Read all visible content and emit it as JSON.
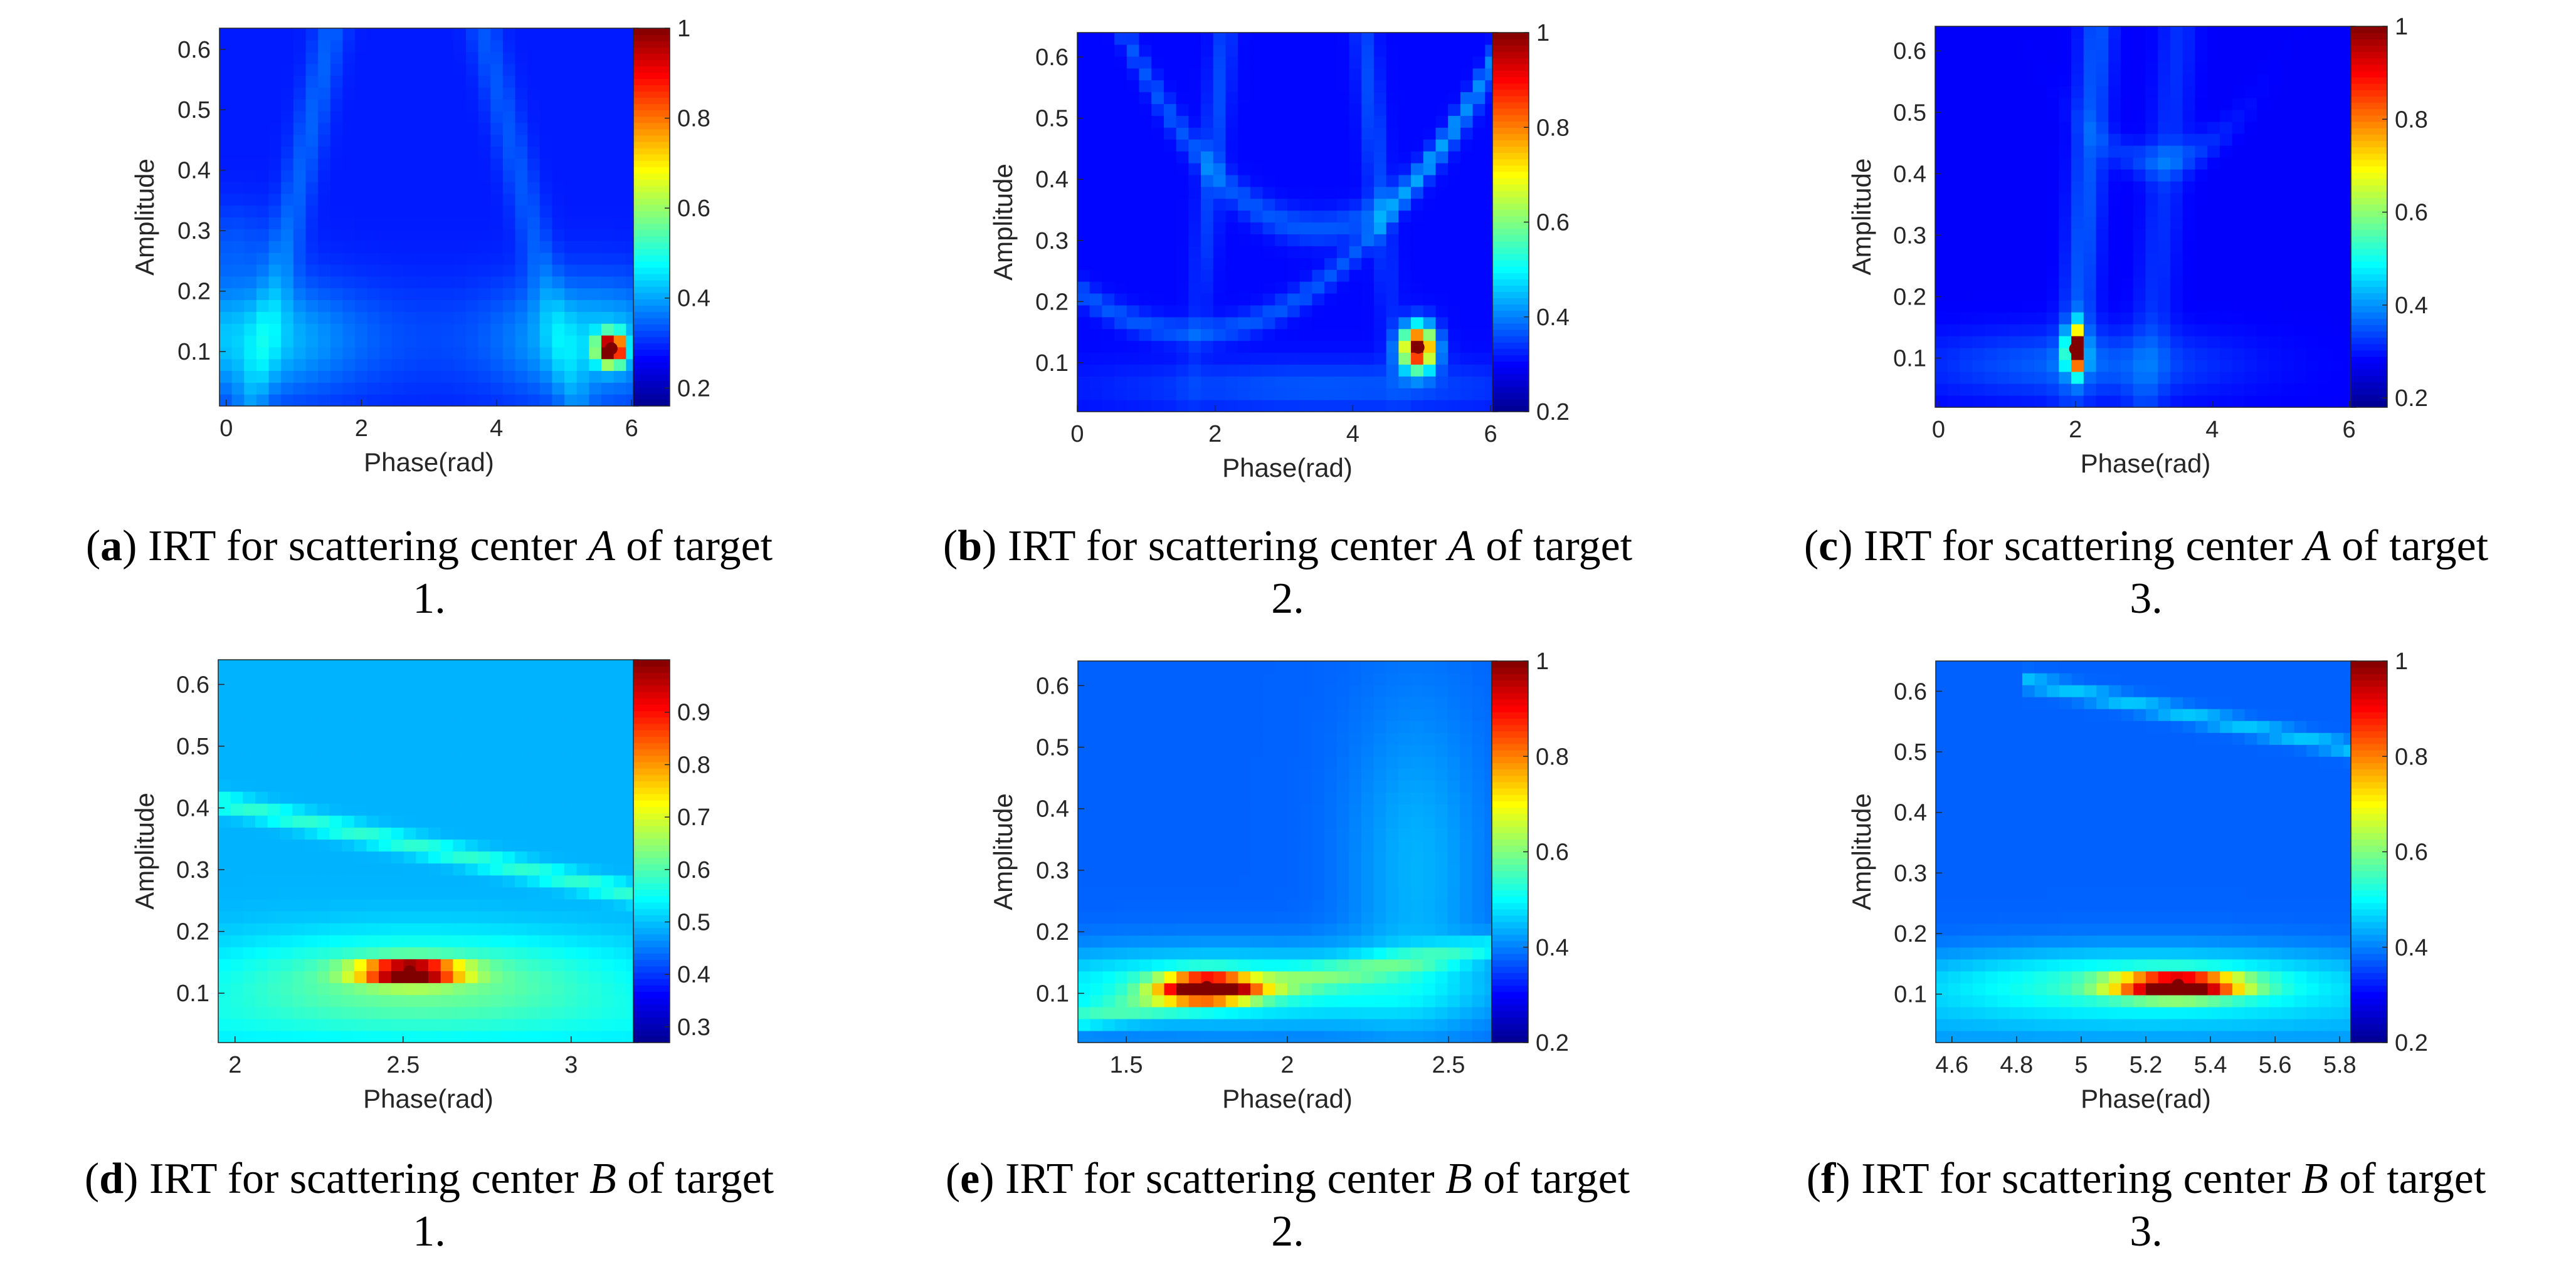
{
  "colorbar_palette": [
    "#00008f",
    "#0000ff",
    "#0080ff",
    "#00ffff",
    "#80ff80",
    "#ffff00",
    "#ff8000",
    "#ff0000",
    "#800000"
  ],
  "chart_data": [
    {
      "type": "heatmap",
      "id": "a",
      "xlabel": "Phase(rad)",
      "ylabel": "Amplitude",
      "xlim": [
        -0.1,
        6.1
      ],
      "ylim": [
        0.01,
        0.635
      ],
      "xticks": [
        0,
        2,
        4,
        6
      ],
      "xtick_labels": [
        "0",
        "2",
        "4",
        "6"
      ],
      "yticks": [
        0.1,
        0.2,
        0.3,
        0.4,
        0.5,
        0.6
      ],
      "ytick_labels": [
        "0.1",
        "0.2",
        "0.3",
        "0.4",
        "0.5",
        "0.6"
      ],
      "colorbar": {
        "range": [
          0.16,
          1
        ],
        "ticks": [
          0.2,
          0.4,
          0.6,
          0.8,
          1
        ],
        "tick_labels": [
          "0.2",
          "0.4",
          "0.6",
          "0.8",
          "1"
        ]
      },
      "peak": {
        "x": 5.7,
        "y": 0.105,
        "value": 1
      },
      "caption": {
        "letter": "a",
        "text_before": "IRT for scattering center",
        "center": "A",
        "text_after": "of target",
        "target": "1."
      }
    },
    {
      "type": "heatmap",
      "id": "b",
      "xlabel": "Phase(rad)",
      "ylabel": "Amplitude",
      "xlim": [
        0,
        6.1
      ],
      "ylim": [
        0.02,
        0.64
      ],
      "xticks": [
        0,
        2,
        4,
        6
      ],
      "xtick_labels": [
        "0",
        "2",
        "4",
        "6"
      ],
      "yticks": [
        0.1,
        0.2,
        0.3,
        0.4,
        0.5,
        0.6
      ],
      "ytick_labels": [
        "0.1",
        "0.2",
        "0.3",
        "0.4",
        "0.5",
        "0.6"
      ],
      "colorbar": {
        "range": [
          0.2,
          1
        ],
        "ticks": [
          0.2,
          0.4,
          0.6,
          0.8,
          1
        ],
        "tick_labels": [
          "0.2",
          "0.4",
          "0.6",
          "0.8",
          "1"
        ]
      },
      "peak": {
        "x": 4.95,
        "y": 0.125,
        "value": 1
      },
      "caption": {
        "letter": "b",
        "text_before": "IRT for scattering center",
        "center": "A",
        "text_after": "of target",
        "target": "2."
      }
    },
    {
      "type": "heatmap",
      "id": "c",
      "xlabel": "Phase(rad)",
      "ylabel": "Amplitude",
      "xlim": [
        -0.05,
        6.1
      ],
      "ylim": [
        0.02,
        0.64
      ],
      "xticks": [
        0,
        2,
        4,
        6
      ],
      "xtick_labels": [
        "0",
        "2",
        "4",
        "6"
      ],
      "yticks": [
        0.1,
        0.2,
        0.3,
        0.4,
        0.5,
        0.6
      ],
      "ytick_labels": [
        "0.1",
        "0.2",
        "0.3",
        "0.4",
        "0.5",
        "0.6"
      ],
      "colorbar": {
        "range": [
          0.18,
          1
        ],
        "ticks": [
          0.2,
          0.4,
          0.6,
          0.8,
          1
        ],
        "tick_labels": [
          "0.2",
          "0.4",
          "0.6",
          "0.8",
          "1"
        ]
      },
      "peak": {
        "x": 2.0,
        "y": 0.115,
        "value": 1
      },
      "caption": {
        "letter": "c",
        "text_before": "IRT for scattering center",
        "center": "A",
        "text_after": "of target",
        "target": "3."
      }
    },
    {
      "type": "heatmap",
      "id": "d",
      "xlabel": "Phase(rad)",
      "ylabel": "Amplitude",
      "xlim": [
        1.95,
        3.2
      ],
      "ylim": [
        0.02,
        0.64
      ],
      "xticks": [
        2,
        2.5,
        3
      ],
      "xtick_labels": [
        "2",
        "2.5",
        "3"
      ],
      "yticks": [
        0.1,
        0.2,
        0.3,
        0.4,
        0.5,
        0.6
      ],
      "ytick_labels": [
        "0.1",
        "0.2",
        "0.3",
        "0.4",
        "0.5",
        "0.6"
      ],
      "colorbar": {
        "range": [
          0.27,
          1
        ],
        "ticks": [
          0.3,
          0.4,
          0.5,
          0.6,
          0.7,
          0.8,
          0.9
        ],
        "tick_labels": [
          "0.3",
          "0.4",
          "0.5",
          "0.6",
          "0.7",
          "0.8",
          "0.9"
        ]
      },
      "peak": {
        "x": 2.52,
        "y": 0.135,
        "value": 1
      },
      "caption": {
        "letter": "d",
        "text_before": "IRT for scattering center",
        "center": "B",
        "text_after": "of target",
        "target": "1."
      }
    },
    {
      "type": "heatmap",
      "id": "e",
      "xlabel": "Phase(rad)",
      "ylabel": "Amplitude",
      "xlim": [
        1.35,
        2.65
      ],
      "ylim": [
        0.02,
        0.64
      ],
      "xticks": [
        1.5,
        2,
        2.5
      ],
      "xtick_labels": [
        "1.5",
        "2",
        "2.5"
      ],
      "yticks": [
        0.1,
        0.2,
        0.3,
        0.4,
        0.5,
        0.6
      ],
      "ytick_labels": [
        "0.1",
        "0.2",
        "0.3",
        "0.4",
        "0.5",
        "0.6"
      ],
      "colorbar": {
        "range": [
          0.2,
          1
        ],
        "ticks": [
          0.2,
          0.4,
          0.6,
          0.8,
          1
        ],
        "tick_labels": [
          "0.2",
          "0.4",
          "0.6",
          "0.8",
          "1"
        ]
      },
      "peak": {
        "x": 1.75,
        "y": 0.11,
        "value": 1
      },
      "caption": {
        "letter": "e",
        "text_before": "IRT for scattering center",
        "center": "B",
        "text_after": "of target",
        "target": "2."
      }
    },
    {
      "type": "heatmap",
      "id": "f",
      "xlabel": "Phase(rad)",
      "ylabel": "Amplitude",
      "xlim": [
        4.55,
        5.85
      ],
      "ylim": [
        0.02,
        0.65
      ],
      "xticks": [
        4.6,
        4.8,
        5,
        5.2,
        5.4,
        5.6,
        5.8
      ],
      "xtick_labels": [
        "4.6",
        "4.8",
        "5",
        "5.2",
        "5.4",
        "5.6",
        "5.8"
      ],
      "yticks": [
        0.1,
        0.2,
        0.3,
        0.4,
        0.5,
        0.6
      ],
      "ytick_labels": [
        "0.1",
        "0.2",
        "0.3",
        "0.4",
        "0.5",
        "0.6"
      ],
      "colorbar": {
        "range": [
          0.2,
          1
        ],
        "ticks": [
          0.2,
          0.4,
          0.6,
          0.8,
          1
        ],
        "tick_labels": [
          "0.2",
          "0.4",
          "0.6",
          "0.8",
          "1"
        ]
      },
      "peak": {
        "x": 5.3,
        "y": 0.115,
        "value": 1
      },
      "caption": {
        "letter": "f",
        "text_before": "IRT for scattering center",
        "center": "B",
        "text_after": "of target",
        "target": "3."
      }
    }
  ]
}
